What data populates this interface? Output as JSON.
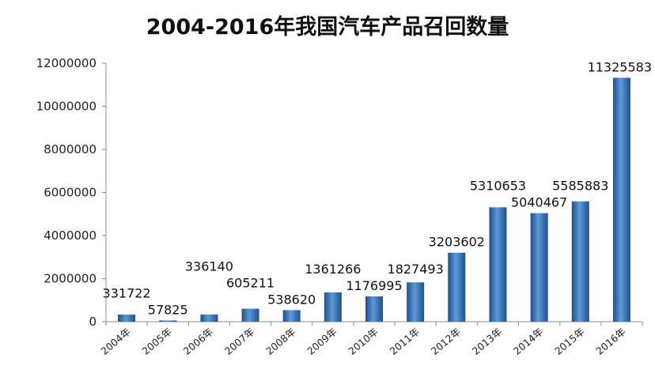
{
  "chart_data": {
    "type": "bar",
    "title": "2004-2016年我国汽车产品召回数量",
    "xlabel": "",
    "ylabel": "",
    "categories": [
      "2004年",
      "2005年",
      "2006年",
      "2007年",
      "2008年",
      "2009年",
      "2010年",
      "2011年",
      "2012年",
      "2013年",
      "2014年",
      "2015年",
      "2016年"
    ],
    "values": [
      331722,
      57825,
      336140,
      605211,
      538620,
      1361266,
      1176995,
      1827493,
      3203602,
      5310653,
      5040467,
      5585883,
      11325583
    ],
    "data_labels": [
      "331722",
      "57825",
      "336140",
      "605211",
      "538620",
      "1361266",
      "1176995",
      "1827493",
      "3203602",
      "5310653",
      "5040467",
      "5585883",
      "11325583"
    ],
    "ylim": [
      0,
      12000000
    ],
    "yticks": [
      "0",
      "2000000",
      "4000000",
      "6000000",
      "8000000",
      "10000000",
      "12000000"
    ],
    "grid": false,
    "legend": "none",
    "bar_color": "#3a74b8",
    "bar_color_light": "#5c9ad8",
    "bar_color_dark": "#1f4f8c",
    "axis_color": "#8c8c8c"
  }
}
